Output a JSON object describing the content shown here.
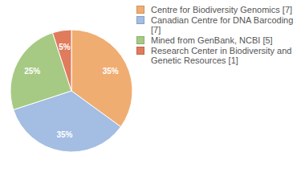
{
  "chart_data": {
    "type": "pie",
    "categories": [
      "Centre for Biodiversity Genomics [7]",
      "Canadian Centre for DNA Barcoding [7]",
      "Mined from GenBank, NCBI [5]",
      "Research Center in Biodiversity and Genetic Resources [1]"
    ],
    "values": [
      35,
      35,
      25,
      5
    ],
    "value_labels": [
      "35%",
      "35%",
      "25%",
      "5%"
    ],
    "colors": [
      "#f0ad72",
      "#a3bde3",
      "#a6ca84",
      "#e07b5c"
    ],
    "data_labels": true,
    "legend": "right"
  }
}
